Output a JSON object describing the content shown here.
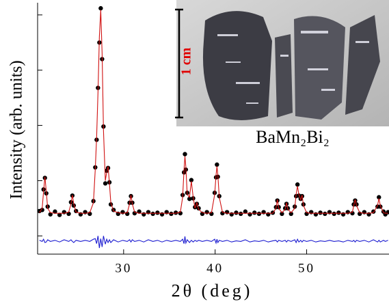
{
  "chart_data": {
    "type": "line",
    "x_label": "2θ (deg)",
    "y_label": "Intensity (arb. units)",
    "annotations": [
      "1 cm",
      "BaMn₂Bi₂"
    ],
    "xlim": [
      20.6,
      59.0
    ],
    "xticks": [
      30,
      40,
      50
    ],
    "ylim": [
      -0.33,
      4.27
    ],
    "yticks": [
      0,
      1,
      2,
      3,
      4
    ],
    "x": [
      20.8,
      21.1,
      21.25,
      21.4,
      21.55,
      21.7,
      22.0,
      22.5,
      23.0,
      23.5,
      24.0,
      24.25,
      24.4,
      24.55,
      24.8,
      25.3,
      25.8,
      26.3,
      26.7,
      26.9,
      27.05,
      27.2,
      27.35,
      27.5,
      27.65,
      27.8,
      28.0,
      28.15,
      28.3,
      28.45,
      28.6,
      28.9,
      29.4,
      29.9,
      30.4,
      30.65,
      30.8,
      30.95,
      31.2,
      31.7,
      32.2,
      32.7,
      33.2,
      33.7,
      34.2,
      34.7,
      35.2,
      35.7,
      36.2,
      36.45,
      36.6,
      36.7,
      36.8,
      36.95,
      37.2,
      37.4,
      37.6,
      37.8,
      38.0,
      38.2,
      38.6,
      39.1,
      39.6,
      39.95,
      40.1,
      40.2,
      40.3,
      40.45,
      40.8,
      41.3,
      41.8,
      42.3,
      42.8,
      43.3,
      43.8,
      44.3,
      44.8,
      45.3,
      45.8,
      46.3,
      46.65,
      46.8,
      46.95,
      47.3,
      47.65,
      47.8,
      47.95,
      48.3,
      48.7,
      48.85,
      49.0,
      49.15,
      49.35,
      49.5,
      49.65,
      50.0,
      50.5,
      51.0,
      51.5,
      52.0,
      52.5,
      53.0,
      53.5,
      54.0,
      54.5,
      55.0,
      55.15,
      55.3,
      55.45,
      55.8,
      56.3,
      56.8,
      57.3,
      57.75,
      57.9,
      58.05,
      58.4,
      58.6,
      58.9
    ],
    "series": [
      {
        "color": "#000000",
        "marker": "dot",
        "values": [
          0.45,
          0.47,
          0.84,
          1.05,
          0.77,
          0.53,
          0.39,
          0.44,
          0.38,
          0.43,
          0.4,
          0.61,
          0.73,
          0.55,
          0.45,
          0.39,
          0.43,
          0.4,
          0.63,
          1.24,
          1.74,
          2.68,
          3.5,
          4.12,
          3.2,
          1.98,
          0.95,
          1.18,
          1.23,
          0.97,
          0.57,
          0.47,
          0.4,
          0.43,
          0.4,
          0.6,
          0.72,
          0.6,
          0.41,
          0.44,
          0.39,
          0.43,
          0.4,
          0.42,
          0.39,
          0.43,
          0.4,
          0.42,
          0.41,
          0.74,
          1.15,
          1.48,
          1.2,
          0.78,
          0.67,
          1.01,
          0.68,
          0.52,
          0.58,
          0.5,
          0.4,
          0.43,
          0.4,
          0.78,
          1.06,
          1.29,
          1.07,
          0.72,
          0.41,
          0.43,
          0.39,
          0.42,
          0.4,
          0.44,
          0.39,
          0.42,
          0.4,
          0.43,
          0.39,
          0.42,
          0.52,
          0.64,
          0.52,
          0.4,
          0.5,
          0.58,
          0.5,
          0.4,
          0.53,
          0.72,
          0.93,
          0.73,
          0.67,
          0.72,
          0.57,
          0.4,
          0.43,
          0.39,
          0.42,
          0.4,
          0.43,
          0.4,
          0.42,
          0.39,
          0.43,
          0.41,
          0.57,
          0.64,
          0.57,
          0.4,
          0.43,
          0.39,
          0.44,
          0.53,
          0.7,
          0.53,
          0.44,
          0.39,
          0.43
        ]
      },
      {
        "color": "#d01010",
        "marker": "none",
        "values": [
          0.42,
          0.5,
          0.8,
          1.07,
          0.8,
          0.5,
          0.42,
          0.41,
          0.41,
          0.41,
          0.43,
          0.58,
          0.74,
          0.58,
          0.43,
          0.41,
          0.41,
          0.42,
          0.6,
          1.2,
          1.79,
          2.6,
          3.6,
          4.09,
          3.3,
          1.9,
          1.0,
          1.15,
          1.26,
          0.95,
          0.6,
          0.45,
          0.42,
          0.41,
          0.42,
          0.58,
          0.74,
          0.58,
          0.43,
          0.41,
          0.41,
          0.41,
          0.41,
          0.41,
          0.41,
          0.41,
          0.41,
          0.41,
          0.43,
          0.7,
          1.2,
          1.44,
          1.25,
          0.75,
          0.7,
          0.99,
          0.7,
          0.5,
          0.6,
          0.48,
          0.42,
          0.41,
          0.42,
          0.75,
          1.1,
          1.26,
          1.1,
          0.7,
          0.43,
          0.41,
          0.41,
          0.41,
          0.41,
          0.41,
          0.41,
          0.41,
          0.41,
          0.41,
          0.41,
          0.41,
          0.5,
          0.66,
          0.5,
          0.42,
          0.48,
          0.6,
          0.48,
          0.42,
          0.5,
          0.75,
          0.9,
          0.75,
          0.65,
          0.74,
          0.55,
          0.42,
          0.41,
          0.41,
          0.41,
          0.41,
          0.41,
          0.41,
          0.41,
          0.41,
          0.41,
          0.43,
          0.55,
          0.66,
          0.55,
          0.42,
          0.41,
          0.41,
          0.42,
          0.55,
          0.68,
          0.55,
          0.42,
          0.41,
          0.41
        ]
      },
      {
        "color": "#1a1ad0",
        "marker": "none",
        "values": [
          -0.08,
          -0.1,
          -0.06,
          -0.12,
          -0.11,
          -0.07,
          -0.1,
          -0.08,
          -0.11,
          -0.07,
          -0.1,
          -0.07,
          -0.1,
          -0.12,
          -0.08,
          -0.1,
          -0.08,
          -0.1,
          -0.06,
          -0.05,
          -0.14,
          0.0,
          -0.22,
          -0.05,
          -0.2,
          0.0,
          -0.15,
          -0.06,
          -0.12,
          -0.07,
          -0.12,
          -0.07,
          -0.11,
          -0.08,
          -0.1,
          -0.07,
          -0.11,
          -0.07,
          -0.1,
          -0.08,
          -0.11,
          -0.07,
          -0.1,
          -0.08,
          -0.11,
          -0.08,
          -0.1,
          -0.08,
          -0.1,
          -0.06,
          -0.14,
          -0.01,
          -0.13,
          -0.07,
          -0.12,
          -0.08,
          -0.11,
          -0.08,
          -0.1,
          -0.08,
          -0.1,
          -0.08,
          -0.1,
          -0.06,
          -0.13,
          -0.06,
          -0.12,
          -0.08,
          -0.1,
          -0.08,
          -0.11,
          -0.09,
          -0.1,
          -0.07,
          -0.11,
          -0.09,
          -0.1,
          -0.08,
          -0.11,
          -0.09,
          -0.08,
          -0.11,
          -0.08,
          -0.1,
          -0.08,
          -0.11,
          -0.08,
          -0.1,
          -0.07,
          -0.12,
          -0.06,
          -0.11,
          -0.08,
          -0.11,
          -0.08,
          -0.1,
          -0.08,
          -0.11,
          -0.09,
          -0.1,
          -0.08,
          -0.1,
          -0.09,
          -0.11,
          -0.08,
          -0.1,
          -0.08,
          -0.11,
          -0.08,
          -0.1,
          -0.08,
          -0.11,
          -0.07,
          -0.11,
          -0.08,
          -0.11,
          -0.08,
          -0.1,
          -0.08
        ]
      }
    ]
  }
}
